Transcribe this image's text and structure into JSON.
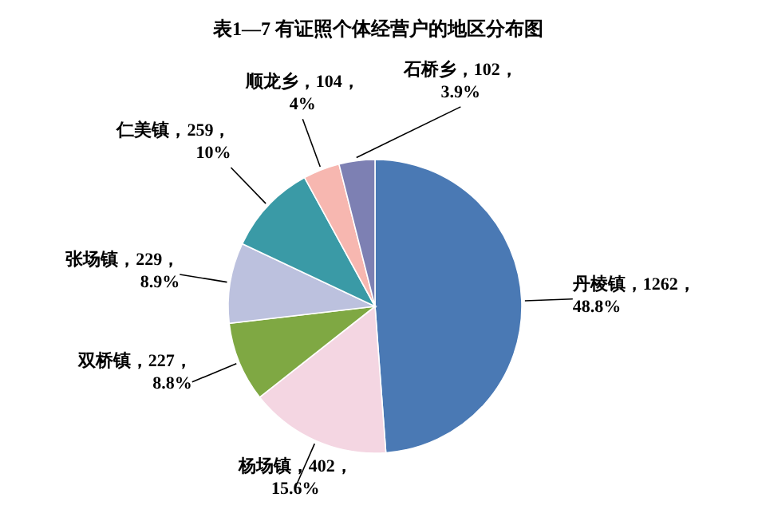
{
  "chart_data": {
    "type": "pie",
    "title": "表1—7  有证照个体经营户的地区分布图",
    "categories": [
      "丹棱镇",
      "杨场镇",
      "双桥镇",
      "张场镇",
      "仁美镇",
      "顺龙乡",
      "石桥乡"
    ],
    "values": [
      1262,
      402,
      227,
      229,
      259,
      104,
      102
    ],
    "value_labels": [
      "1262，48.8%",
      "402，15.6%",
      "227，8.8%",
      "229，8.9%",
      "259，10%",
      "104，4%",
      "102，3.9%"
    ],
    "colors": [
      "#4a79b4",
      "#f4d6e2",
      "#7fa843",
      "#bcc1de",
      "#3a9aa6",
      "#f7b7b0",
      "#7d80b3"
    ]
  }
}
